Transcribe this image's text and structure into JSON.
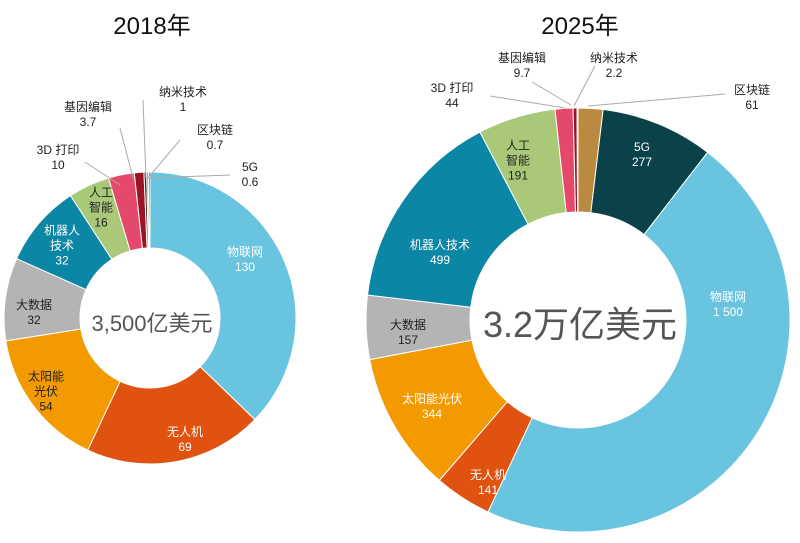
{
  "colors": {
    "物联网": "#69c4e0",
    "无人机": "#df5210",
    "太阳能光伏": "#f29a00",
    "大数据": "#b4b4b4",
    "机器人技术": "#0b86a4",
    "人工智能": "#a9c979",
    "3D 打印": "#e4486a",
    "基因编辑": "#9a1426",
    "纳米技术": "#3a2a20",
    "区块链": "#b98a3f",
    "5G": "#0b4249"
  },
  "chart_data": [
    {
      "type": "pie",
      "subtype": "donut",
      "title": "2018年",
      "total_label": "3,500亿美元",
      "categories": [
        "物联网",
        "无人机",
        "太阳能光伏",
        "大数据",
        "机器人技术",
        "人工智能",
        "3D 打印",
        "基因编辑",
        "纳米技术",
        "区块链",
        "5G"
      ],
      "labels": [
        "物联网",
        "无人机",
        "太阳能\n光伏",
        "大数据",
        "机器人\n技术",
        "人工\n智能",
        "3D 打印",
        "基因编辑",
        "纳米技术",
        "区块链",
        "5G"
      ],
      "values": [
        130,
        69,
        54,
        32,
        32,
        16,
        10,
        3.7,
        1,
        0.7,
        0.6
      ],
      "value_labels": [
        "130",
        "69",
        "54",
        "32",
        "32",
        "16",
        "10",
        "3.7",
        "1",
        "0.7",
        "0.6"
      ]
    },
    {
      "type": "pie",
      "subtype": "donut",
      "title": "2025年",
      "total_label": "3.2万亿美元",
      "categories": [
        "物联网",
        "无人机",
        "太阳能光伏",
        "大数据",
        "机器人技术",
        "人工智能",
        "3D 打印",
        "基因编辑",
        "纳米技术",
        "区块链",
        "5G"
      ],
      "labels": [
        "物联网",
        "无人机",
        "太阳能光伏",
        "大数据",
        "机器人技术",
        "人工\n智能",
        "3D 打印",
        "基因编辑",
        "纳米技术",
        "区块链",
        "5G"
      ],
      "values": [
        1500,
        141,
        344,
        157,
        499,
        191,
        44,
        9.7,
        2.2,
        61,
        277
      ],
      "value_labels": [
        "1 500",
        "141",
        "344",
        "157",
        "499",
        "191",
        "44",
        "9.7",
        "2.2",
        "61",
        "277"
      ]
    }
  ]
}
